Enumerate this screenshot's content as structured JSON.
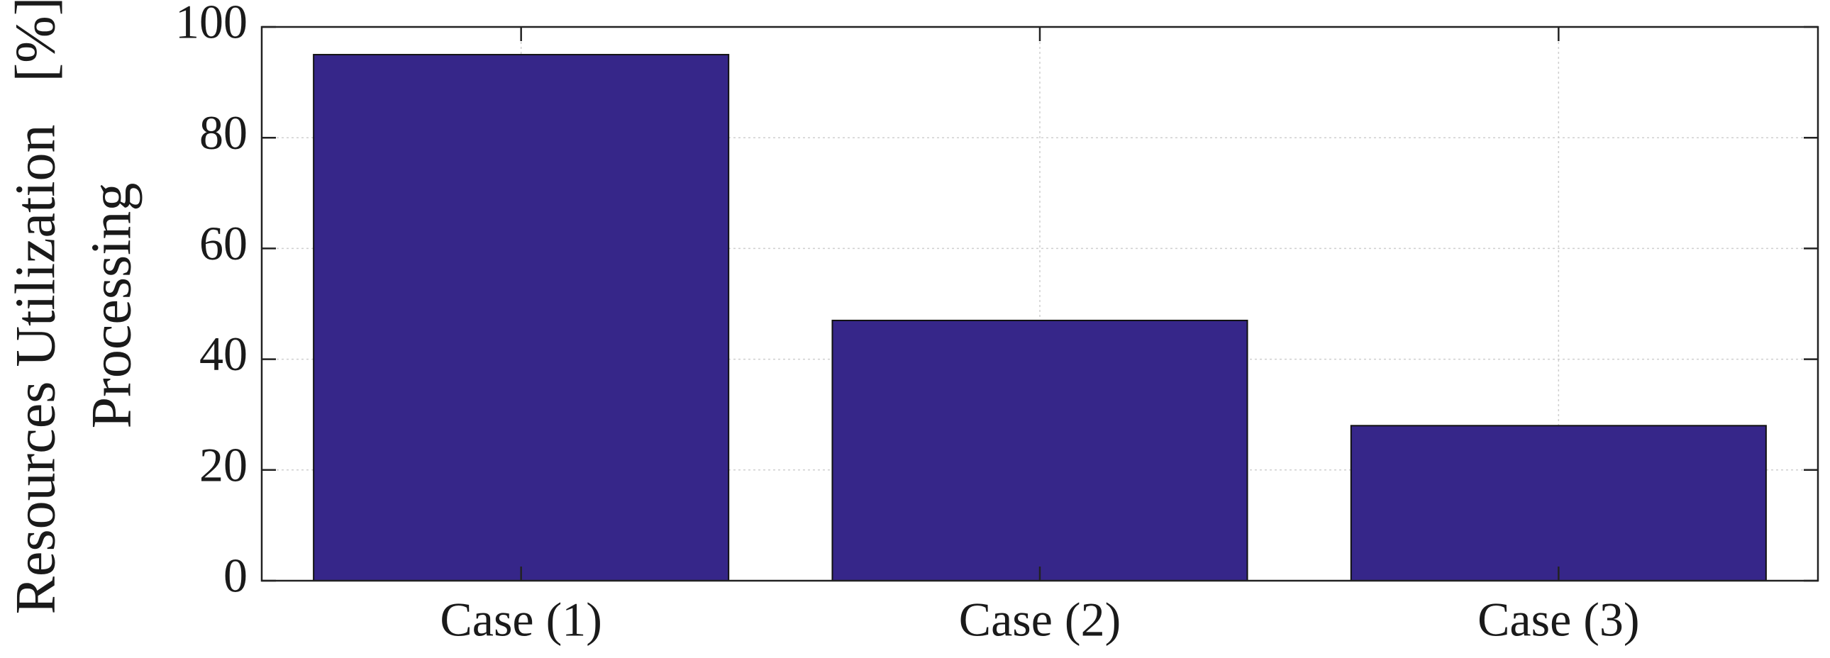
{
  "chart_data": {
    "type": "bar",
    "ylabel": [
      "Resources Utilization   [%]",
      "Processing"
    ],
    "categories": [
      "Case (1)",
      "Case (2)",
      "Case (3)"
    ],
    "values": [
      95,
      47,
      28
    ],
    "color": "#362689",
    "ylim": [
      0,
      100
    ],
    "yticks": [
      0,
      20,
      40,
      60,
      80,
      100
    ],
    "grid": true
  }
}
